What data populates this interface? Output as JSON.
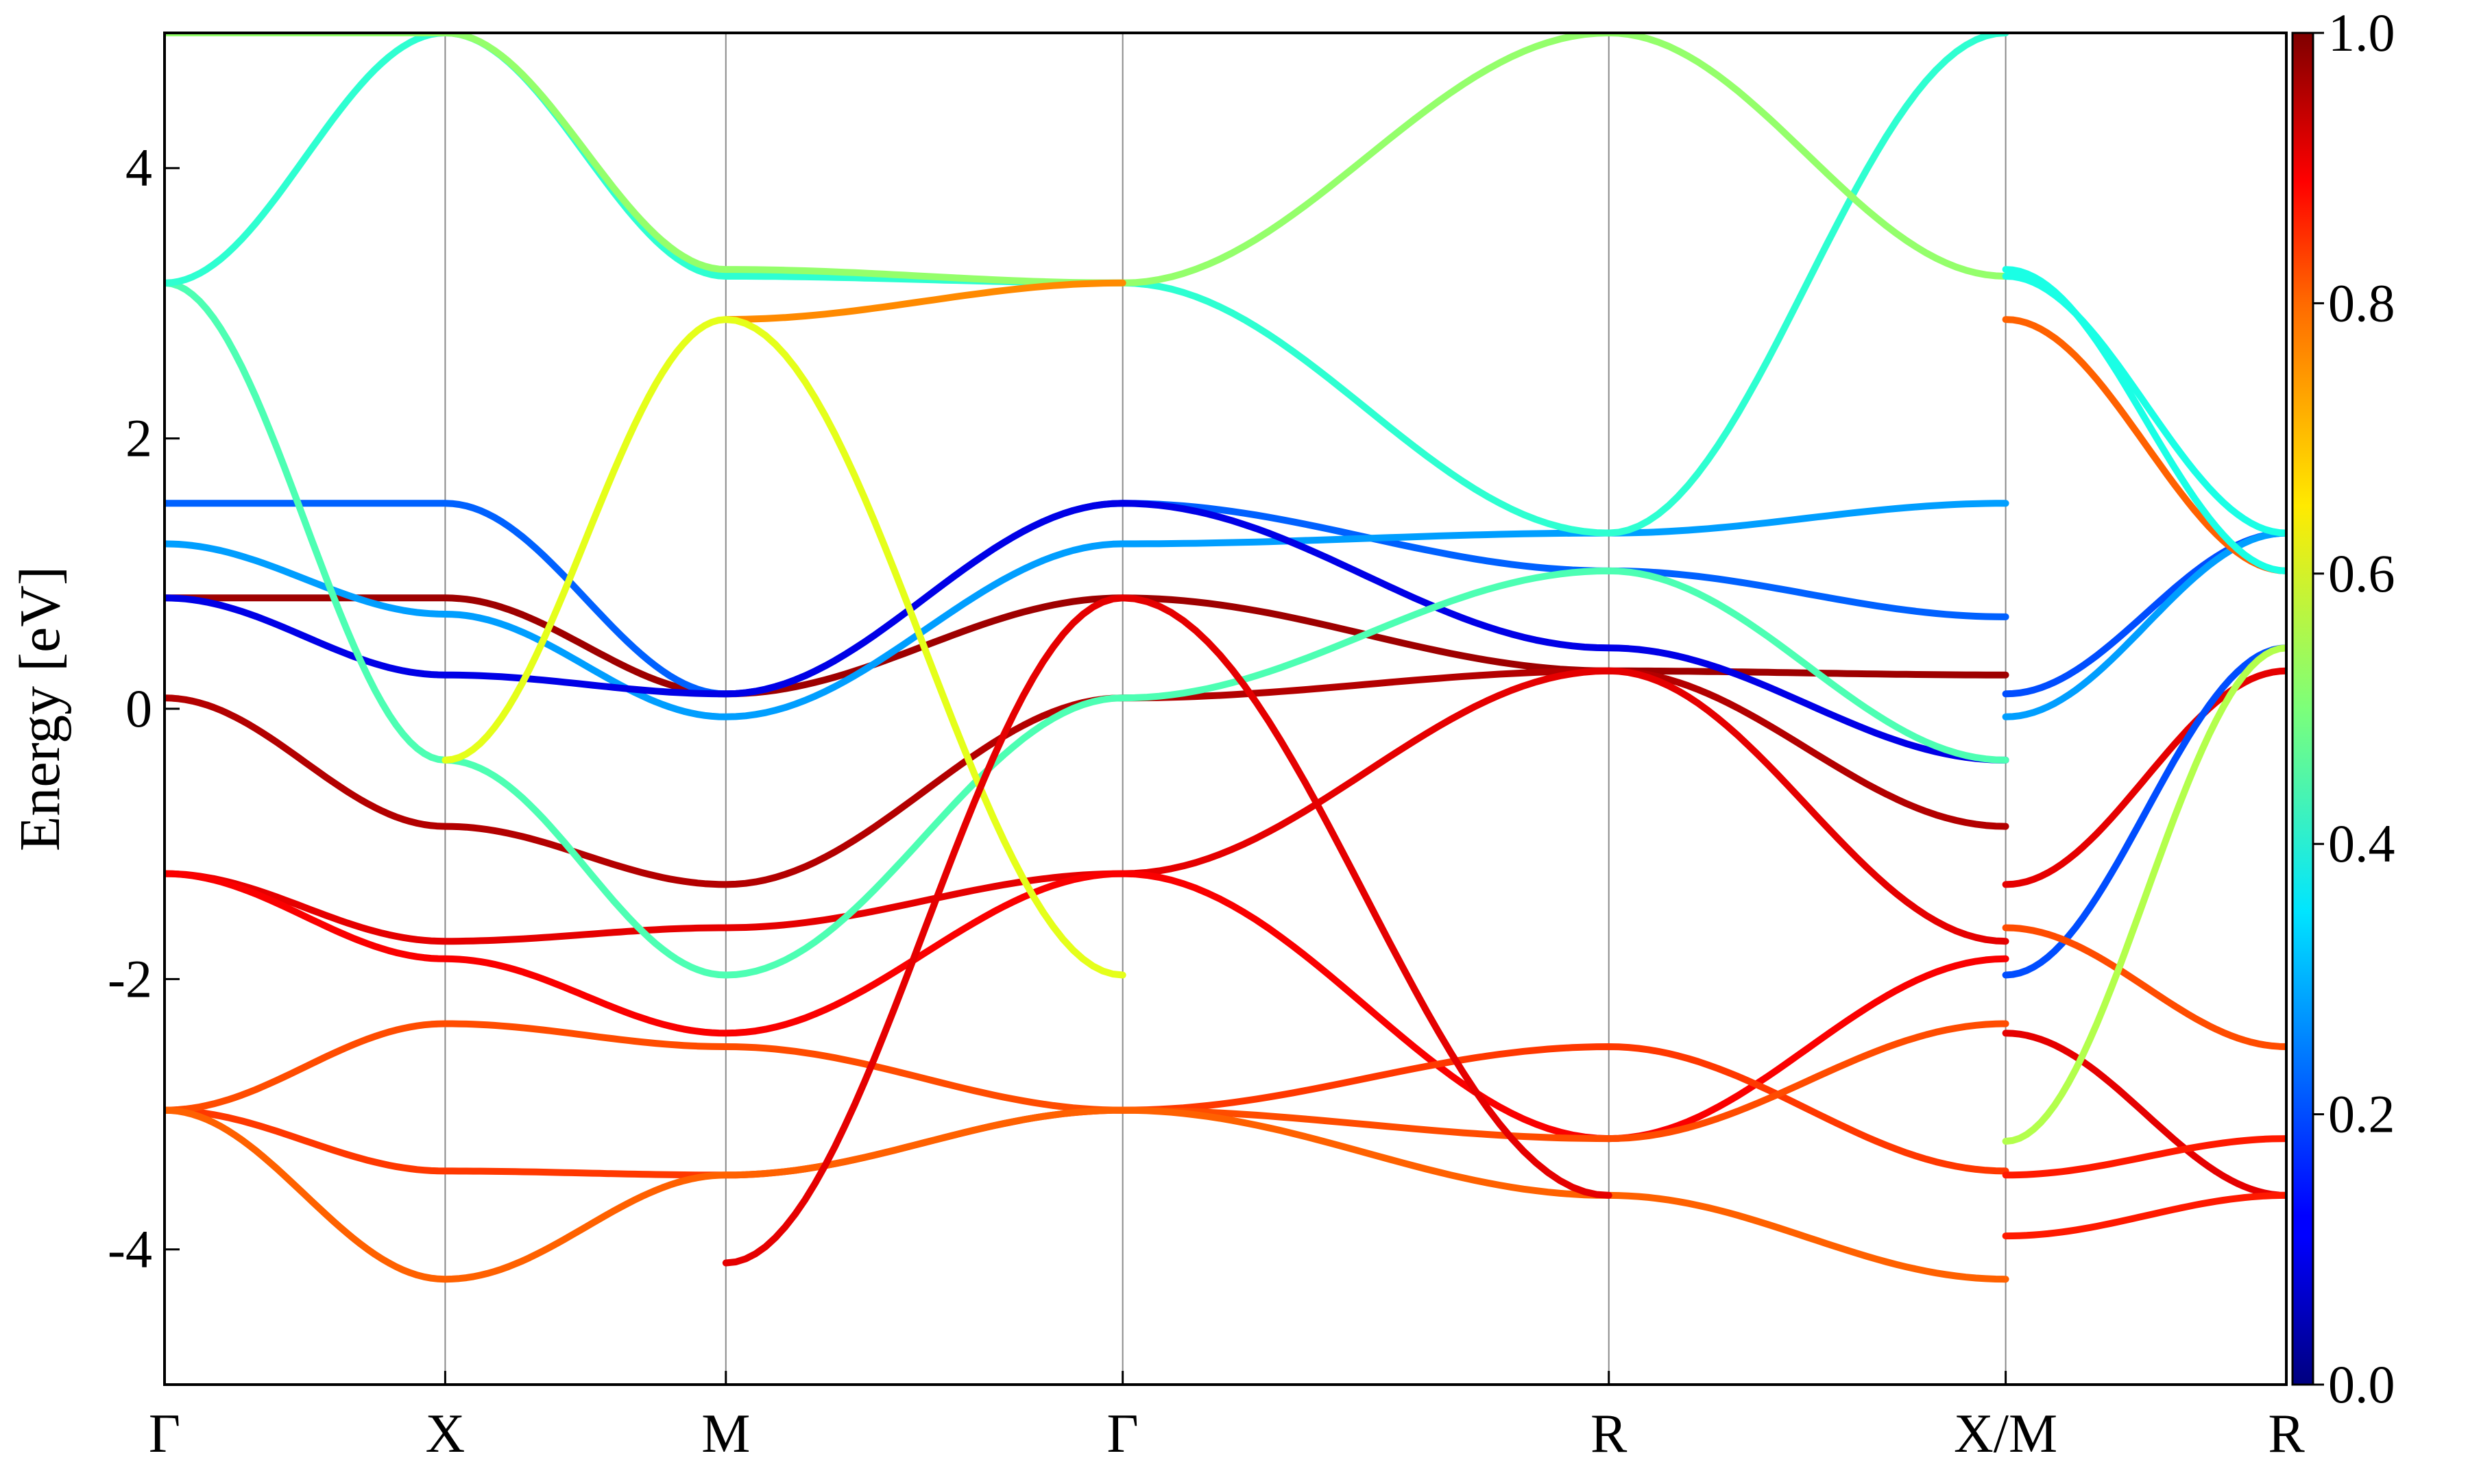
{
  "chart_data": {
    "type": "line",
    "title": "",
    "xlabel": "",
    "ylabel": "Energy [eV]",
    "ylim": [
      -5,
      5
    ],
    "yticks": [
      {
        "value": 4,
        "label": "4"
      },
      {
        "value": 2,
        "label": "2"
      },
      {
        "value": 0,
        "label": "0"
      },
      {
        "value": -2,
        "label": "-2"
      },
      {
        "value": -4,
        "label": "-4"
      }
    ],
    "k_path": [
      {
        "label": "Γ",
        "k": 0.0
      },
      {
        "label": "X",
        "k": 0.5
      },
      {
        "label": "M",
        "k": 1.0
      },
      {
        "label": "Γ",
        "k": 1.707
      },
      {
        "label": "R",
        "k": 2.573
      },
      {
        "label": "X/M",
        "k": 3.28
      },
      {
        "label": "R",
        "k": 3.78
      }
    ],
    "grid": "vertical lines at high-symmetry points",
    "colorbar": {
      "colormap": "jet",
      "range": [
        0.0,
        1.0
      ],
      "ticks": [
        "0.0",
        "0.2",
        "0.4",
        "0.6",
        "0.8",
        "1.0"
      ]
    },
    "series": [
      {
        "color_value": 0.97,
        "k": [
          0,
          0.5,
          1.0,
          1.707,
          2.573,
          3.28
        ],
        "energy": [
          0.82,
          0.82,
          0.11,
          0.82,
          0.28,
          0.25
        ]
      },
      {
        "color_value": 0.22,
        "k": [
          0,
          0.5,
          1.0,
          1.707,
          2.573,
          3.28
        ],
        "energy": [
          1.52,
          1.52,
          0.11,
          1.52,
          1.02,
          0.68
        ]
      },
      {
        "color_value": 0.28,
        "k": [
          0,
          0.5,
          1.0,
          1.707,
          2.573,
          3.28
        ],
        "energy": [
          1.22,
          0.7,
          -0.06,
          1.22,
          1.3,
          1.52
        ]
      },
      {
        "color_value": 0.1,
        "k": [
          0,
          0.5,
          1.0,
          1.707,
          2.573,
          3.28
        ],
        "energy": [
          0.82,
          0.25,
          0.11,
          1.52,
          0.45,
          -0.38
        ]
      },
      {
        "color_value": 0.95,
        "k": [
          0,
          0.5,
          1.0,
          1.707,
          2.573,
          3.28
        ],
        "energy": [
          0.08,
          -0.87,
          -1.3,
          0.08,
          0.28,
          -0.87
        ]
      },
      {
        "color_value": 0.9,
        "k": [
          0,
          0.5,
          1.0,
          1.707,
          2.573,
          3.28
        ],
        "energy": [
          -1.22,
          -1.72,
          -1.62,
          -1.22,
          0.28,
          -1.72
        ]
      },
      {
        "color_value": 0.88,
        "k": [
          0,
          0.5,
          1.0,
          1.707,
          2.573,
          3.28
        ],
        "energy": [
          -1.22,
          -1.85,
          -2.4,
          -1.22,
          -3.18,
          -1.85
        ]
      },
      {
        "color_value": 0.82,
        "k": [
          0,
          0.5,
          1.0,
          1.707,
          2.573,
          3.28
        ],
        "energy": [
          -2.97,
          -3.42,
          -3.45,
          -2.97,
          -2.5,
          -3.42
        ]
      },
      {
        "color_value": 0.8,
        "k": [
          0,
          0.5,
          1.0,
          1.707,
          2.573,
          3.28
        ],
        "energy": [
          -2.97,
          -2.33,
          -2.5,
          -2.97,
          -3.18,
          -2.33
        ]
      },
      {
        "color_value": 0.78,
        "k": [
          0,
          0.5,
          1.0,
          1.707,
          2.573,
          3.28
        ],
        "energy": [
          -2.97,
          -4.22,
          -3.45,
          -2.97,
          -3.6,
          -4.22
        ]
      },
      {
        "color_value": 0.45,
        "k": [
          0,
          0.5,
          1.0,
          1.707,
          2.573,
          3.28
        ],
        "energy": [
          3.15,
          -0.38,
          -1.97,
          0.08,
          1.02,
          -0.38
        ]
      },
      {
        "color_value": 0.42,
        "k": [
          0,
          0.5,
          1.0,
          1.707,
          2.573,
          3.28
        ],
        "energy": [
          3.15,
          5.0,
          3.2,
          3.15,
          1.3,
          5.0
        ]
      },
      {
        "color_value": 0.52,
        "k": [
          0,
          0.5,
          1.0,
          1.707,
          2.573,
          3.28
        ],
        "energy": [
          5.0,
          5.0,
          3.25,
          3.15,
          5.0,
          3.2
        ]
      },
      {
        "color_value": 0.74,
        "k": [
          1.0,
          1.707
        ],
        "energy": [
          2.88,
          3.15
        ]
      },
      {
        "color_value": 0.6,
        "k": [
          0.5,
          1.0,
          1.707
        ],
        "energy": [
          -0.38,
          2.88,
          -1.97
        ]
      },
      {
        "color_value": 0.9,
        "k": [
          1.0,
          1.707,
          2.573
        ],
        "energy": [
          -4.1,
          0.82,
          -3.6
        ]
      },
      {
        "color_value": 0.9,
        "k": [
          3.28,
          3.78
        ],
        "energy": [
          -1.3,
          0.28
        ]
      },
      {
        "color_value": 0.2,
        "k": [
          3.28,
          3.78
        ],
        "energy": [
          0.11,
          1.3
        ]
      },
      {
        "color_value": 0.28,
        "k": [
          3.28,
          3.78
        ],
        "energy": [
          -0.06,
          1.3
        ]
      },
      {
        "color_value": 0.2,
        "k": [
          3.28,
          3.78
        ],
        "energy": [
          -1.97,
          0.45
        ]
      },
      {
        "color_value": 0.78,
        "k": [
          3.28,
          3.78
        ],
        "energy": [
          2.88,
          1.02
        ]
      },
      {
        "color_value": 0.4,
        "k": [
          3.28,
          3.78
        ],
        "energy": [
          3.2,
          1.3
        ]
      },
      {
        "color_value": 0.4,
        "k": [
          3.28,
          3.78
        ],
        "energy": [
          3.25,
          1.02
        ]
      },
      {
        "color_value": 0.8,
        "k": [
          3.28,
          3.78
        ],
        "energy": [
          -1.62,
          -2.5
        ]
      },
      {
        "color_value": 0.9,
        "k": [
          3.28,
          3.78
        ],
        "energy": [
          -2.4,
          -3.6
        ]
      },
      {
        "color_value": 0.85,
        "k": [
          3.28,
          3.78
        ],
        "energy": [
          -3.45,
          -3.18
        ]
      },
      {
        "color_value": 0.85,
        "k": [
          3.28,
          3.78
        ],
        "energy": [
          -3.9,
          -3.6
        ]
      },
      {
        "color_value": 0.55,
        "k": [
          3.28,
          3.78
        ],
        "energy": [
          -3.2,
          0.45
        ]
      }
    ]
  }
}
